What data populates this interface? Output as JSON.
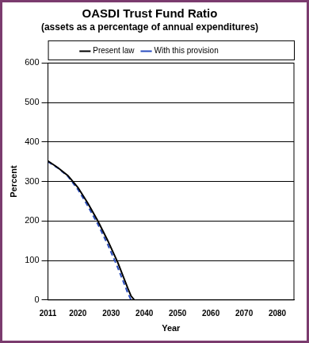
{
  "chart_data": {
    "type": "line",
    "title": "OASDI Trust Fund Ratio",
    "subtitle": "(assets as a percentage of annual expenditures)",
    "x_label": "Year",
    "y_label": "Percent",
    "x": [
      2011,
      2014,
      2017,
      2020,
      2023,
      2026,
      2029,
      2032,
      2035,
      2036,
      2037
    ],
    "series": [
      {
        "name": "Present law",
        "color": "#000000",
        "line_style": "solid",
        "values": [
          352,
          335,
          315,
          285,
          245,
          200,
          150,
          95,
          30,
          10,
          0
        ]
      },
      {
        "name": "With this provision",
        "color": "#2a4dbf",
        "line_style": "dashed",
        "values": [
          350,
          334,
          313,
          280,
          238,
          192,
          140,
          82,
          18,
          0,
          null
        ]
      }
    ],
    "xlim": [
      2011,
      2085
    ],
    "xticks": [
      2011,
      2020,
      2030,
      2040,
      2050,
      2060,
      2070,
      2080
    ],
    "ylim": [
      0,
      600
    ],
    "yticks": [
      0,
      100,
      200,
      300,
      400,
      500,
      600
    ],
    "grid": true,
    "legend": "top"
  }
}
